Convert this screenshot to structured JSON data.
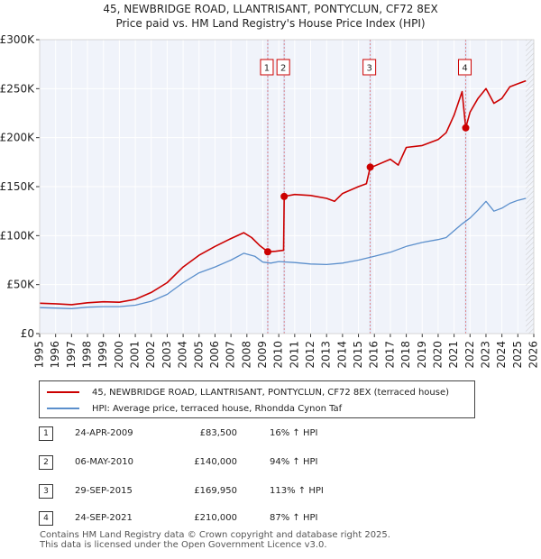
{
  "chart_data": {
    "type": "line",
    "title": "45, NEWBRIDGE ROAD, LLANTRISANT, PONTYCLUN, CF72 8EX",
    "subtitle": "Price paid vs. HM Land Registry's House Price Index (HPI)",
    "xlim": [
      1995,
      2026
    ],
    "ylim": [
      0,
      300000
    ],
    "x_ticks": [
      1995,
      1996,
      1997,
      1998,
      1999,
      2000,
      2001,
      2002,
      2003,
      2004,
      2005,
      2006,
      2007,
      2008,
      2009,
      2010,
      2011,
      2012,
      2013,
      2014,
      2015,
      2016,
      2017,
      2018,
      2019,
      2020,
      2021,
      2022,
      2023,
      2024,
      2025,
      2026
    ],
    "x_tick_labels": [
      "1995",
      "1996",
      "1997",
      "1998",
      "1999",
      "2000",
      "2001",
      "2002",
      "2003",
      "2004",
      "2005",
      "2006",
      "2007",
      "2008",
      "2009",
      "2010",
      "2011",
      "2012",
      "2013",
      "2014",
      "2015",
      "2016",
      "2017",
      "2018",
      "2019",
      "2020",
      "2021",
      "2022",
      "2023",
      "2024",
      "2025",
      "2026"
    ],
    "y_ticks": [
      0,
      50000,
      100000,
      150000,
      200000,
      250000,
      300000
    ],
    "y_tick_labels": [
      "£0",
      "£50K",
      "£100K",
      "£150K",
      "£200K",
      "£250K",
      "£300K"
    ],
    "grid": true,
    "series": [
      {
        "name": "45, NEWBRIDGE ROAD, LLANTRISANT, PONTYCLUN, CF72 8EX (terraced house)",
        "color": "#cc0000",
        "points": [
          [
            1995,
            31000
          ],
          [
            1996,
            30500
          ],
          [
            1997,
            29500
          ],
          [
            1998,
            31500
          ],
          [
            1999,
            32500
          ],
          [
            2000,
            32000
          ],
          [
            2001,
            35000
          ],
          [
            2002,
            42000
          ],
          [
            2003,
            52000
          ],
          [
            2004,
            68000
          ],
          [
            2005,
            80000
          ],
          [
            2006,
            89000
          ],
          [
            2007,
            97000
          ],
          [
            2007.8,
            103000
          ],
          [
            2008.3,
            98000
          ],
          [
            2008.8,
            90000
          ],
          [
            2009.31,
            83500
          ],
          [
            2009.8,
            84000
          ],
          [
            2010.3,
            85000
          ],
          [
            2010.34,
            140000
          ],
          [
            2011,
            142000
          ],
          [
            2012,
            141000
          ],
          [
            2013,
            138000
          ],
          [
            2013.5,
            135000
          ],
          [
            2014,
            143000
          ],
          [
            2015,
            150000
          ],
          [
            2015.5,
            153000
          ],
          [
            2015.74,
            169950
          ],
          [
            2016,
            171000
          ],
          [
            2017,
            178000
          ],
          [
            2017.5,
            172000
          ],
          [
            2018,
            190000
          ],
          [
            2019,
            192000
          ],
          [
            2020,
            198000
          ],
          [
            2020.5,
            205000
          ],
          [
            2021,
            223000
          ],
          [
            2021.5,
            247000
          ],
          [
            2021.73,
            210000
          ],
          [
            2022,
            226000
          ],
          [
            2022.5,
            240000
          ],
          [
            2023,
            250000
          ],
          [
            2023.5,
            235000
          ],
          [
            2024,
            240000
          ],
          [
            2024.5,
            252000
          ],
          [
            2025,
            255000
          ],
          [
            2025.5,
            258000
          ]
        ]
      },
      {
        "name": "HPI: Average price, terraced house, Rhondda Cynon Taf",
        "color": "#5b8fcc",
        "points": [
          [
            1995,
            26500
          ],
          [
            1996,
            26000
          ],
          [
            1997,
            25500
          ],
          [
            1998,
            27000
          ],
          [
            1999,
            27500
          ],
          [
            2000,
            27500
          ],
          [
            2001,
            29000
          ],
          [
            2002,
            33000
          ],
          [
            2003,
            40000
          ],
          [
            2004,
            52000
          ],
          [
            2005,
            62000
          ],
          [
            2006,
            68000
          ],
          [
            2007,
            75000
          ],
          [
            2007.8,
            82000
          ],
          [
            2008.5,
            79000
          ],
          [
            2009,
            73000
          ],
          [
            2009.5,
            72000
          ],
          [
            2010,
            73500
          ],
          [
            2011,
            72500
          ],
          [
            2012,
            71000
          ],
          [
            2013,
            70500
          ],
          [
            2014,
            72000
          ],
          [
            2015,
            75000
          ],
          [
            2016,
            79000
          ],
          [
            2017,
            83000
          ],
          [
            2018,
            89000
          ],
          [
            2019,
            93000
          ],
          [
            2020,
            96000
          ],
          [
            2020.5,
            98000
          ],
          [
            2021,
            105000
          ],
          [
            2021.5,
            112000
          ],
          [
            2022,
            118000
          ],
          [
            2022.5,
            126000
          ],
          [
            2023,
            135000
          ],
          [
            2023.5,
            125000
          ],
          [
            2024,
            128000
          ],
          [
            2024.5,
            133000
          ],
          [
            2025,
            136000
          ],
          [
            2025.5,
            138000
          ]
        ]
      }
    ],
    "transactions": [
      {
        "label": "1",
        "x": 2009.31,
        "y": 83500
      },
      {
        "label": "2",
        "x": 2010.34,
        "y": 140000
      },
      {
        "label": "3",
        "x": 2015.74,
        "y": 169950
      },
      {
        "label": "4",
        "x": 2021.73,
        "y": 210000
      }
    ]
  },
  "legend": {
    "property_label": "45, NEWBRIDGE ROAD, LLANTRISANT, PONTYCLUN, CF72 8EX (terraced house)",
    "hpi_label": "HPI: Average price, terraced house, Rhondda Cynon Taf"
  },
  "transactions_table": [
    {
      "num": "1",
      "date": "24-APR-2009",
      "price": "£83,500",
      "hpi": "16% ↑ HPI"
    },
    {
      "num": "2",
      "date": "06-MAY-2010",
      "price": "£140,000",
      "hpi": "94% ↑ HPI"
    },
    {
      "num": "3",
      "date": "29-SEP-2015",
      "price": "£169,950",
      "hpi": "113% ↑ HPI"
    },
    {
      "num": "4",
      "date": "24-SEP-2021",
      "price": "£210,000",
      "hpi": "87% ↑ HPI"
    }
  ],
  "footer": {
    "line1": "Contains HM Land Registry data © Crown copyright and database right 2025.",
    "line2": "This data is licensed under the Open Government Licence v3.0."
  }
}
